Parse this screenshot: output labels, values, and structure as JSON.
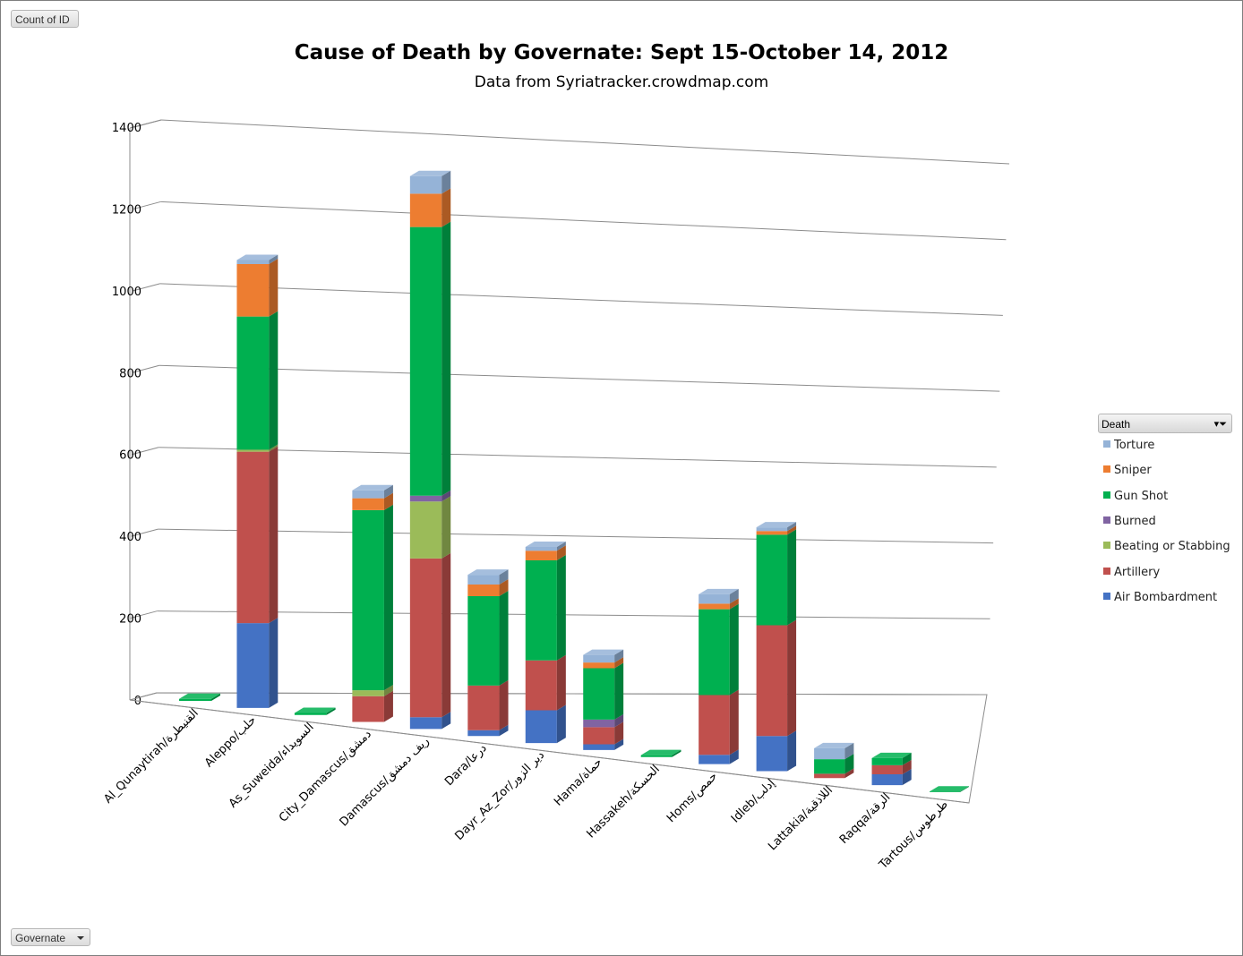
{
  "pivot": {
    "values_field": "Count of ID",
    "axis_field": "Governate",
    "legend_field": "Death"
  },
  "chart_data": {
    "type": "bar",
    "stacked": true,
    "three_d": true,
    "title": "Cause of Death by Governate: Sept 15-October 14, 2012",
    "subtitle": "Data from Syriatracker.crowdmap.com",
    "ylim": [
      0,
      1400
    ],
    "yticks": [
      0,
      200,
      400,
      600,
      800,
      1000,
      1200,
      1400
    ],
    "grid": true,
    "legend_position": "right",
    "categories": [
      "Al_Qunaytirah/القنيطرة",
      "Aleppo/حلب",
      "As_Suweida/السويداء",
      "City_Damascus/دمشق",
      "Damascus/ريف دمشق",
      "Dara/درعا",
      "Dayr_Az_Zor/دير الزور",
      "Hama/حماة",
      "Hassakeh/الحسكة",
      "Homs/حمص",
      "Idleb/إدلب",
      "Lattakia/اللاذقية",
      "Raqqa/الرقة",
      "Tartous/طرطوس"
    ],
    "series": [
      {
        "name": "Air Bombardment",
        "color": "#4472C4",
        "values": [
          0,
          210,
          0,
          0,
          30,
          15,
          85,
          15,
          0,
          25,
          95,
          0,
          30,
          0
        ]
      },
      {
        "name": "Artillery",
        "color": "#C0504D",
        "values": [
          0,
          425,
          0,
          65,
          405,
          115,
          130,
          45,
          0,
          160,
          300,
          12,
          25,
          0
        ]
      },
      {
        "name": "Beating or Stabbing",
        "color": "#9BBB59",
        "values": [
          0,
          5,
          0,
          15,
          145,
          0,
          0,
          0,
          0,
          0,
          0,
          0,
          0,
          0
        ]
      },
      {
        "name": "Burned",
        "color": "#8064A2",
        "values": [
          0,
          0,
          0,
          0,
          15,
          0,
          0,
          20,
          0,
          0,
          0,
          0,
          0,
          0
        ]
      },
      {
        "name": "Gun Shot",
        "color": "#00B050",
        "values": [
          5,
          330,
          5,
          455,
          685,
          230,
          260,
          135,
          5,
          230,
          245,
          40,
          20,
          2
        ]
      },
      {
        "name": "Sniper",
        "color": "#ED7D31",
        "values": [
          0,
          130,
          0,
          30,
          85,
          30,
          25,
          15,
          0,
          15,
          10,
          0,
          0,
          0
        ]
      },
      {
        "name": "Torture",
        "color": "#95B3D7",
        "values": [
          0,
          10,
          0,
          20,
          45,
          25,
          10,
          20,
          0,
          25,
          10,
          30,
          0,
          0
        ]
      }
    ]
  },
  "legend": {
    "items": [
      {
        "label": "Torture",
        "color": "#95B3D7"
      },
      {
        "label": "Sniper",
        "color": "#ED7D31"
      },
      {
        "label": "Gun Shot",
        "color": "#00B050"
      },
      {
        "label": "Burned",
        "color": "#8064A2"
      },
      {
        "label": "Beating or Stabbing",
        "color": "#9BBB59"
      },
      {
        "label": "Artillery",
        "color": "#C0504D"
      },
      {
        "label": "Air Bombardment",
        "color": "#4472C4"
      }
    ]
  }
}
